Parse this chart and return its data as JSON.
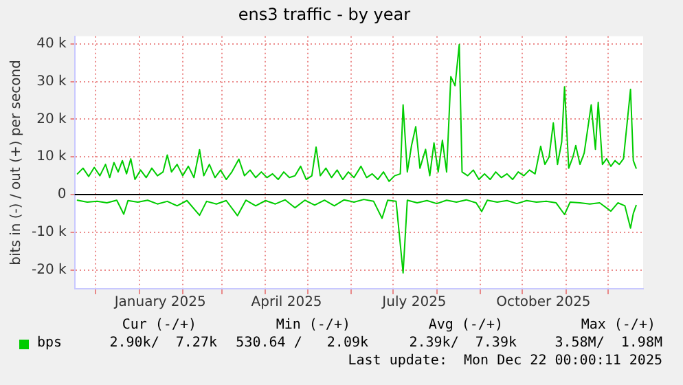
{
  "chart_data": {
    "type": "line",
    "title": "ens3 traffic - by year",
    "ylabel": "bits in (-) / out (+) per second",
    "xlim": [
      "2024-11-16",
      "2025-12-26"
    ],
    "ylim": [
      -25000,
      42000
    ],
    "xticks": [
      {
        "value": "2024-12-01",
        "label": null
      },
      {
        "value": "2025-01-01",
        "label": null
      },
      {
        "value": "2025-01-16",
        "label": "January 2025"
      },
      {
        "value": "2025-02-01",
        "label": null
      },
      {
        "value": "2025-03-01",
        "label": null
      },
      {
        "value": "2025-04-01",
        "label": null
      },
      {
        "value": "2025-04-16",
        "label": "April 2025"
      },
      {
        "value": "2025-05-01",
        "label": null
      },
      {
        "value": "2025-06-01",
        "label": null
      },
      {
        "value": "2025-07-01",
        "label": null
      },
      {
        "value": "2025-07-16",
        "label": "July 2025"
      },
      {
        "value": "2025-08-01",
        "label": null
      },
      {
        "value": "2025-09-01",
        "label": null
      },
      {
        "value": "2025-10-01",
        "label": null
      },
      {
        "value": "2025-10-16",
        "label": "October 2025"
      },
      {
        "value": "2025-11-01",
        "label": null
      },
      {
        "value": "2025-12-01",
        "label": null
      }
    ],
    "yticks": [
      {
        "value": -20000,
        "label": "-20 k"
      },
      {
        "value": -10000,
        "label": "-10 k"
      },
      0,
      {
        "value": 10000,
        "label": "10 k"
      },
      {
        "value": 20000,
        "label": "20 k"
      },
      {
        "value": 30000,
        "label": "30 k"
      },
      {
        "value": 40000,
        "label": "40 k"
      }
    ],
    "grid": true,
    "legend": "bottom left",
    "marker": "none",
    "line_style": "solid",
    "ref_lines": [
      {
        "axis": "y",
        "value": 0,
        "color": "#000000"
      }
    ],
    "annotations": [
      "Cur (-/+)",
      "Min (-/+)",
      "Avg (-/+)",
      "Max (-/+)",
      "2.90k/  7.27k",
      "530.64 /   2.09k",
      "2.39k/  7.39k",
      "3.58M/  1.98M",
      "Last update:  Mon Dec 22 00:00:11 2025"
    ],
    "series": [
      {
        "name": "bps",
        "color": "#00cc00",
        "x": [
          "2024-11-18",
          "2024-11-22",
          "2024-11-26",
          "2024-11-30",
          "2024-12-04",
          "2024-12-08",
          "2024-12-11",
          "2024-12-14",
          "2024-12-17",
          "2024-12-20",
          "2024-12-23",
          "2024-12-26",
          "2024-12-29",
          "2025-01-02",
          "2025-01-06",
          "2025-01-10",
          "2025-01-14",
          "2025-01-18",
          "2025-01-21",
          "2025-01-24",
          "2025-01-28",
          "2025-02-01",
          "2025-02-05",
          "2025-02-09",
          "2025-02-13",
          "2025-02-16",
          "2025-02-20",
          "2025-02-24",
          "2025-02-28",
          "2025-03-04",
          "2025-03-08",
          "2025-03-13",
          "2025-03-17",
          "2025-03-21",
          "2025-03-25",
          "2025-03-29",
          "2025-04-02",
          "2025-04-06",
          "2025-04-10",
          "2025-04-14",
          "2025-04-18",
          "2025-04-22",
          "2025-04-26",
          "2025-04-30",
          "2025-05-04",
          "2025-05-07",
          "2025-05-10",
          "2025-05-14",
          "2025-05-18",
          "2025-05-22",
          "2025-05-26",
          "2025-05-30",
          "2025-06-03",
          "2025-06-08",
          "2025-06-12",
          "2025-06-16",
          "2025-06-20",
          "2025-06-24",
          "2025-06-28",
          "2025-07-02",
          "2025-07-06",
          "2025-07-08",
          "2025-07-11",
          "2025-07-14",
          "2025-07-17",
          "2025-07-20",
          "2025-07-24",
          "2025-07-27",
          "2025-07-30",
          "2025-08-02",
          "2025-08-05",
          "2025-08-08",
          "2025-08-11",
          "2025-08-14",
          "2025-08-17",
          "2025-08-19",
          "2025-08-23",
          "2025-08-27",
          "2025-08-31",
          "2025-09-04",
          "2025-09-08",
          "2025-09-12",
          "2025-09-16",
          "2025-09-20",
          "2025-09-24",
          "2025-09-28",
          "2025-10-02",
          "2025-10-06",
          "2025-10-10",
          "2025-10-14",
          "2025-10-17",
          "2025-10-20",
          "2025-10-23",
          "2025-10-26",
          "2025-10-29",
          "2025-10-31",
          "2025-11-03",
          "2025-11-06",
          "2025-11-08",
          "2025-11-11",
          "2025-11-14",
          "2025-11-19",
          "2025-11-22",
          "2025-11-24",
          "2025-11-27",
          "2025-11-30",
          "2025-12-03",
          "2025-12-06",
          "2025-12-09",
          "2025-12-12",
          "2025-12-17",
          "2025-12-19",
          "2025-12-21"
        ],
        "values": [
          5500,
          7000,
          4800,
          7200,
          5000,
          8000,
          4500,
          8500,
          6000,
          9000,
          5500,
          9500,
          4000,
          6500,
          4500,
          7000,
          5000,
          6000,
          10500,
          6000,
          8000,
          5000,
          7500,
          4500,
          11900,
          5000,
          8000,
          4500,
          6500,
          4000,
          6000,
          9400,
          5000,
          6500,
          4500,
          6000,
          4500,
          5500,
          4000,
          6000,
          4500,
          5000,
          7500,
          4000,
          5000,
          12600,
          5000,
          7000,
          4500,
          6500,
          4000,
          6000,
          4500,
          7500,
          4500,
          5500,
          4000,
          6000,
          3500,
          5000,
          5500,
          23800,
          6000,
          13000,
          18000,
          7000,
          12000,
          5000,
          13700,
          6000,
          14400,
          6000,
          31300,
          28900,
          39800,
          6000,
          5000,
          6500,
          4000,
          5500,
          4000,
          6000,
          4500,
          5500,
          4000,
          6000,
          5000,
          6500,
          5500,
          12800,
          8000,
          10000,
          19000,
          8000,
          14000,
          28600,
          7000,
          10000,
          13000,
          8000,
          11000,
          23800,
          12000,
          24500,
          8000,
          9500,
          7500,
          9000,
          8000,
          9500,
          27900,
          9000,
          7000
        ]
      },
      {
        "color": "#00cc00",
        "x": [
          "2024-11-18",
          "2024-11-25",
          "2024-12-02",
          "2024-12-09",
          "2024-12-16",
          "2024-12-21",
          "2024-12-24",
          "2024-12-31",
          "2025-01-07",
          "2025-01-14",
          "2025-01-21",
          "2025-01-28",
          "2025-02-04",
          "2025-02-13",
          "2025-02-18",
          "2025-02-25",
          "2025-03-04",
          "2025-03-12",
          "2025-03-18",
          "2025-03-25",
          "2025-04-01",
          "2025-04-08",
          "2025-04-15",
          "2025-04-22",
          "2025-04-29",
          "2025-05-06",
          "2025-05-13",
          "2025-05-20",
          "2025-05-27",
          "2025-06-03",
          "2025-06-10",
          "2025-06-17",
          "2025-06-23",
          "2025-06-27",
          "2025-07-03",
          "2025-07-08",
          "2025-07-11",
          "2025-07-18",
          "2025-07-25",
          "2025-08-01",
          "2025-08-08",
          "2025-08-15",
          "2025-08-22",
          "2025-08-29",
          "2025-09-02",
          "2025-09-06",
          "2025-09-13",
          "2025-09-20",
          "2025-09-27",
          "2025-10-04",
          "2025-10-11",
          "2025-10-18",
          "2025-10-25",
          "2025-10-31",
          "2025-11-04",
          "2025-11-11",
          "2025-11-18",
          "2025-11-25",
          "2025-12-03",
          "2025-12-08",
          "2025-12-13",
          "2025-12-17",
          "2025-12-19",
          "2025-12-21"
        ],
        "values": [
          -1500,
          -2000,
          -1800,
          -2200,
          -1500,
          -5200,
          -1600,
          -2000,
          -1500,
          -2500,
          -1800,
          -3000,
          -1600,
          -5500,
          -1800,
          -2500,
          -1600,
          -5600,
          -1500,
          -3000,
          -1600,
          -2500,
          -1400,
          -3500,
          -1500,
          -2800,
          -1500,
          -3000,
          -1400,
          -2000,
          -1300,
          -1800,
          -6300,
          -1500,
          -1800,
          -20800,
          -1500,
          -2200,
          -1600,
          -2400,
          -1500,
          -2000,
          -1400,
          -2200,
          -4500,
          -1500,
          -2000,
          -1600,
          -2400,
          -1600,
          -2000,
          -1800,
          -2200,
          -5300,
          -2000,
          -2200,
          -2500,
          -2200,
          -4400,
          -2200,
          -3000,
          -8900,
          -5000,
          -2900
        ]
      }
    ]
  }
}
